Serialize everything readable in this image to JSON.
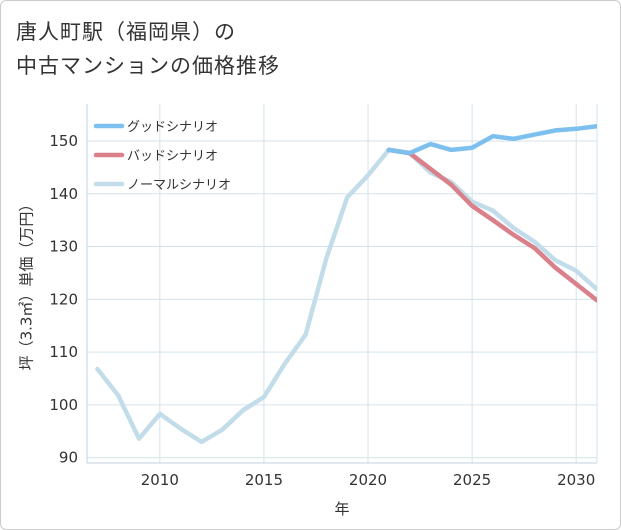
{
  "title_lines": [
    "唐人町駅（福岡県）の",
    "中古マンションの価格推移"
  ],
  "chart_data": {
    "type": "line",
    "title": "唐人町駅（福岡県）の中古マンションの価格推移",
    "xlabel": "年",
    "ylabel": "坪（3.3㎡）単価（万円）",
    "xlim": [
      2006.5,
      2031
    ],
    "ylim": [
      89,
      157
    ],
    "x_ticks": [
      2010,
      2015,
      2020,
      2025,
      2030
    ],
    "y_ticks": [
      90,
      100,
      110,
      120,
      130,
      140,
      150
    ],
    "grid": true,
    "legend_position": "top-left",
    "series": [
      {
        "name": "グッドシナリオ",
        "color": "#7dbfee",
        "x": [
          2021,
          2022,
          2023,
          2024,
          2025,
          2026,
          2027,
          2028,
          2029,
          2030,
          2031
        ],
        "values": [
          148.3,
          147.7,
          149.4,
          148.3,
          148.7,
          150.9,
          150.4,
          151.2,
          152.0,
          152.3,
          152.8
        ]
      },
      {
        "name": "バッドシナリオ",
        "color": "#d9808a",
        "x": [
          2021,
          2022,
          2023,
          2024,
          2025,
          2026,
          2027,
          2028,
          2029,
          2030,
          2031
        ],
        "values": [
          148.3,
          147.7,
          144.7,
          141.7,
          137.7,
          135.0,
          132.2,
          129.7,
          126.0,
          122.9,
          119.8
        ]
      },
      {
        "name": "ノーマルシナリオ",
        "color": "#c2dde9",
        "x": [
          2007,
          2008,
          2009,
          2010,
          2011,
          2012,
          2013,
          2014,
          2015,
          2016,
          2017,
          2018,
          2019,
          2020,
          2021,
          2022,
          2023,
          2024,
          2025,
          2026,
          2027,
          2028,
          2029,
          2030,
          2031
        ],
        "values": [
          106.8,
          101.8,
          93.6,
          98.3,
          95.5,
          93.0,
          95.3,
          99.0,
          101.5,
          107.8,
          113.3,
          127.8,
          139.3,
          143.5,
          148.3,
          147.7,
          144.0,
          142.2,
          138.5,
          136.8,
          133.5,
          130.9,
          127.4,
          125.4,
          121.9
        ]
      }
    ]
  }
}
